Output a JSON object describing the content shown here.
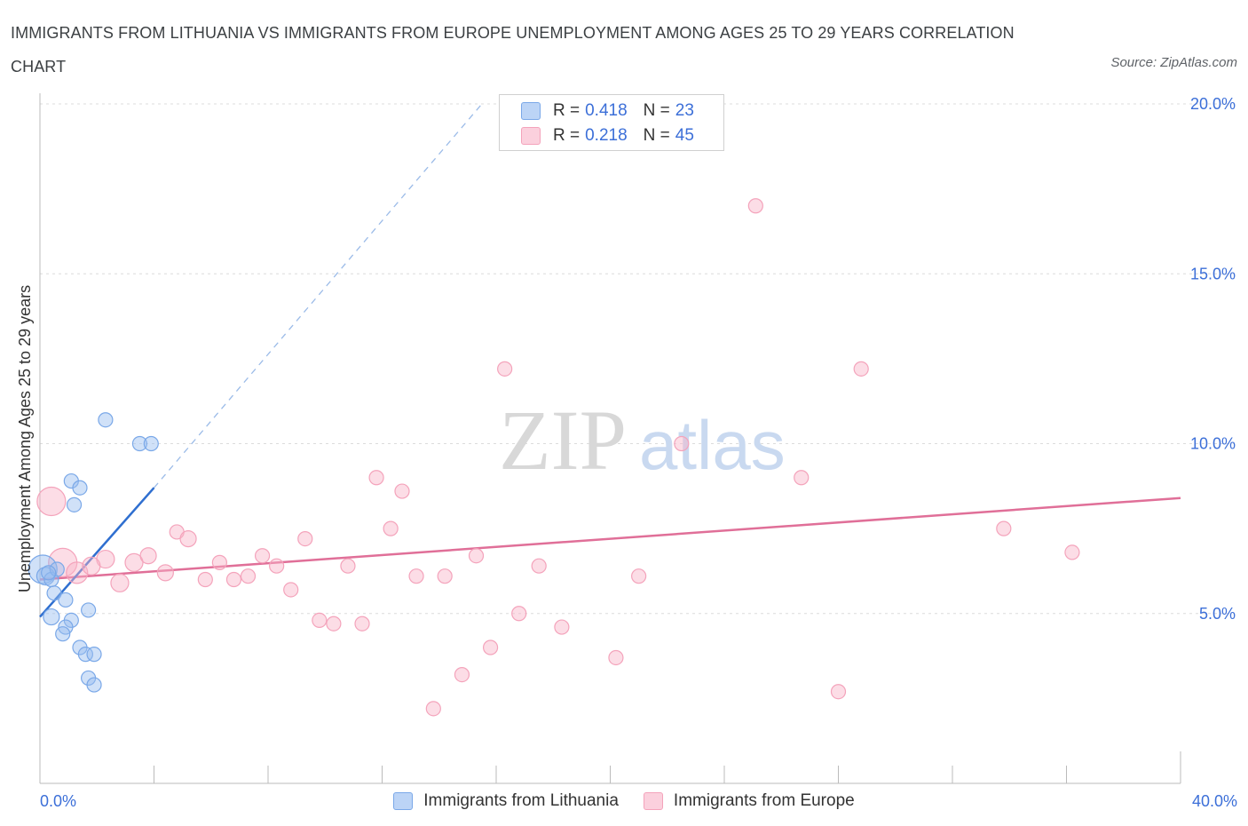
{
  "chart_data": {
    "type": "scatter",
    "title": "IMMIGRANTS FROM LITHUANIA VS IMMIGRANTS FROM EUROPE UNEMPLOYMENT AMONG AGES 25 TO 29 YEARS CORRELATION CHART",
    "source": "Source: ZipAtlas.com",
    "xlabel": "",
    "ylabel": "Unemployment Among Ages 25 to 29 years",
    "xlim": [
      0,
      40
    ],
    "ylim": [
      0,
      20
    ],
    "x_tick_labels": [
      "0.0%",
      "40.0%"
    ],
    "y_ticks": [
      5,
      10,
      15,
      20
    ],
    "y_tick_labels": [
      "5.0%",
      "10.0%",
      "15.0%",
      "20.0%"
    ],
    "grid": true,
    "watermark": "ZIPatlas",
    "legend": {
      "series1": {
        "r_label": "R = ",
        "r_value": "0.418",
        "n_label": "N = ",
        "n_value": "23"
      },
      "series2": {
        "r_label": "R = ",
        "r_value": "0.218",
        "n_label": "N = ",
        "n_value": "45"
      }
    },
    "series": [
      {
        "name": "Immigrants from Lithuania",
        "color": "#7aa8e8",
        "line_color": "#2f6fd0",
        "trend": {
          "x0": 0.0,
          "y0": 4.9,
          "x1": 4.0,
          "y1": 8.7,
          "x_dash_end": 15.5,
          "y_dash_end": 20.0
        },
        "points": [
          {
            "x": 0.1,
            "y": 6.3,
            "s": 16
          },
          {
            "x": 0.2,
            "y": 6.1,
            "s": 10
          },
          {
            "x": 0.4,
            "y": 6.0,
            "s": 8
          },
          {
            "x": 0.6,
            "y": 6.3,
            "s": 8
          },
          {
            "x": 0.5,
            "y": 5.6,
            "s": 8
          },
          {
            "x": 0.9,
            "y": 5.4,
            "s": 8
          },
          {
            "x": 0.4,
            "y": 4.9,
            "s": 9
          },
          {
            "x": 1.1,
            "y": 4.8,
            "s": 8
          },
          {
            "x": 0.9,
            "y": 4.6,
            "s": 8
          },
          {
            "x": 0.8,
            "y": 4.4,
            "s": 8
          },
          {
            "x": 1.7,
            "y": 5.1,
            "s": 8
          },
          {
            "x": 1.4,
            "y": 4.0,
            "s": 8
          },
          {
            "x": 1.6,
            "y": 3.8,
            "s": 8
          },
          {
            "x": 1.9,
            "y": 3.8,
            "s": 8
          },
          {
            "x": 1.7,
            "y": 3.1,
            "s": 8
          },
          {
            "x": 1.9,
            "y": 2.9,
            "s": 8
          },
          {
            "x": 1.1,
            "y": 8.9,
            "s": 8
          },
          {
            "x": 1.4,
            "y": 8.7,
            "s": 8
          },
          {
            "x": 1.2,
            "y": 8.2,
            "s": 8
          },
          {
            "x": 2.3,
            "y": 10.7,
            "s": 8
          },
          {
            "x": 3.5,
            "y": 10.0,
            "s": 8
          },
          {
            "x": 3.9,
            "y": 10.0,
            "s": 8
          },
          {
            "x": 0.3,
            "y": 6.2,
            "s": 8
          }
        ]
      },
      {
        "name": "Immigrants from Europe",
        "color": "#f4a3bb",
        "line_color": "#e06f98",
        "trend": {
          "x0": 0.0,
          "y0": 6.0,
          "x1": 40.0,
          "y1": 8.4
        },
        "points": [
          {
            "x": 0.4,
            "y": 8.3,
            "s": 16
          },
          {
            "x": 0.8,
            "y": 6.5,
            "s": 16
          },
          {
            "x": 1.3,
            "y": 6.2,
            "s": 12
          },
          {
            "x": 2.3,
            "y": 6.6,
            "s": 10
          },
          {
            "x": 1.8,
            "y": 6.4,
            "s": 10
          },
          {
            "x": 2.8,
            "y": 5.9,
            "s": 10
          },
          {
            "x": 3.3,
            "y": 6.5,
            "s": 10
          },
          {
            "x": 3.8,
            "y": 6.7,
            "s": 9
          },
          {
            "x": 4.4,
            "y": 6.2,
            "s": 9
          },
          {
            "x": 4.8,
            "y": 7.4,
            "s": 8
          },
          {
            "x": 5.2,
            "y": 7.2,
            "s": 9
          },
          {
            "x": 5.8,
            "y": 6.0,
            "s": 8
          },
          {
            "x": 6.3,
            "y": 6.5,
            "s": 8
          },
          {
            "x": 6.8,
            "y": 6.0,
            "s": 8
          },
          {
            "x": 7.3,
            "y": 6.1,
            "s": 8
          },
          {
            "x": 7.8,
            "y": 6.7,
            "s": 8
          },
          {
            "x": 8.3,
            "y": 6.4,
            "s": 8
          },
          {
            "x": 8.8,
            "y": 5.7,
            "s": 8
          },
          {
            "x": 9.3,
            "y": 7.2,
            "s": 8
          },
          {
            "x": 9.8,
            "y": 4.8,
            "s": 8
          },
          {
            "x": 10.3,
            "y": 4.7,
            "s": 8
          },
          {
            "x": 10.8,
            "y": 6.4,
            "s": 8
          },
          {
            "x": 11.3,
            "y": 4.7,
            "s": 8
          },
          {
            "x": 11.8,
            "y": 9.0,
            "s": 8
          },
          {
            "x": 12.3,
            "y": 7.5,
            "s": 8
          },
          {
            "x": 12.7,
            "y": 8.6,
            "s": 8
          },
          {
            "x": 13.2,
            "y": 6.1,
            "s": 8
          },
          {
            "x": 13.8,
            "y": 2.2,
            "s": 8
          },
          {
            "x": 14.2,
            "y": 6.1,
            "s": 8
          },
          {
            "x": 14.8,
            "y": 3.2,
            "s": 8
          },
          {
            "x": 15.3,
            "y": 6.7,
            "s": 8
          },
          {
            "x": 15.8,
            "y": 4.0,
            "s": 8
          },
          {
            "x": 16.3,
            "y": 12.2,
            "s": 8
          },
          {
            "x": 16.8,
            "y": 5.0,
            "s": 8
          },
          {
            "x": 17.5,
            "y": 6.4,
            "s": 8
          },
          {
            "x": 18.3,
            "y": 4.6,
            "s": 8
          },
          {
            "x": 20.2,
            "y": 3.7,
            "s": 8
          },
          {
            "x": 21.0,
            "y": 6.1,
            "s": 8
          },
          {
            "x": 22.5,
            "y": 10.0,
            "s": 8
          },
          {
            "x": 25.1,
            "y": 17.0,
            "s": 8
          },
          {
            "x": 26.7,
            "y": 9.0,
            "s": 8
          },
          {
            "x": 28.0,
            "y": 2.7,
            "s": 8
          },
          {
            "x": 28.8,
            "y": 12.2,
            "s": 8
          },
          {
            "x": 33.8,
            "y": 7.5,
            "s": 8
          },
          {
            "x": 36.2,
            "y": 6.8,
            "s": 8
          }
        ]
      }
    ]
  }
}
